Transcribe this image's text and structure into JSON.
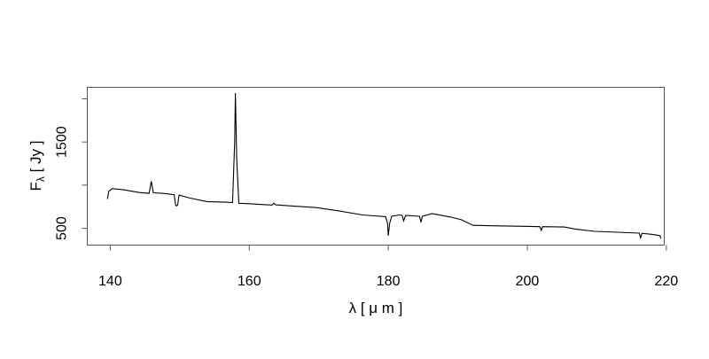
{
  "chart_data": {
    "type": "line",
    "title": "",
    "xlabel": "λ [ μ m ]",
    "ylabel_main": "F",
    "ylabel_sub": "λ",
    "ylabel_unit": " [ Jy ]",
    "xlim": [
      136.7,
      219.7
    ],
    "ylim": [
      306,
      2133
    ],
    "xticks": [
      140,
      160,
      180,
      200,
      220
    ],
    "xtick_labels": [
      "140",
      "160",
      "180",
      "200",
      "220"
    ],
    "yticks": [
      500,
      1000,
      1500,
      2000
    ],
    "ytick_labels": [
      "500",
      "",
      "1500",
      ""
    ],
    "grid": false,
    "line_color": "#000000",
    "series": [
      {
        "x": [
          139.6,
          139.8,
          140.3,
          142,
          144.2,
          145.6,
          145.9,
          146.2,
          147.5,
          149.2,
          149.4,
          149.5,
          149.7,
          149.9,
          151.5,
          153.9,
          156,
          157.6,
          157.9,
          158.0,
          158.2,
          158.5,
          160,
          162,
          163.3,
          163.5,
          163.8,
          166,
          169.7,
          173,
          176.3,
          178,
          179.6,
          179.9,
          180.0,
          180.2,
          180.5,
          181.6,
          182,
          182.2,
          182.5,
          184.5,
          184.7,
          184.9,
          186.3,
          189,
          190.5,
          192.2,
          195,
          198.6,
          201.8,
          202,
          202.2,
          205.3,
          207,
          209.7,
          213,
          216.1,
          216.3,
          216.5,
          218,
          219.1,
          219.2
        ],
        "y": [
          840,
          930,
          960,
          945,
          915,
          905,
          1045,
          912,
          905,
          890,
          770,
          760,
          770,
          885,
          850,
          810,
          805,
          800,
          1500,
          2065,
          1300,
          790,
          785,
          775,
          770,
          790,
          772,
          760,
          740,
          700,
          655,
          645,
          635,
          560,
          415,
          560,
          640,
          655,
          650,
          585,
          650,
          640,
          570,
          640,
          670,
          630,
          600,
          535,
          530,
          525,
          520,
          475,
          520,
          515,
          490,
          465,
          455,
          445,
          390,
          442,
          430,
          415,
          380
        ]
      }
    ]
  }
}
